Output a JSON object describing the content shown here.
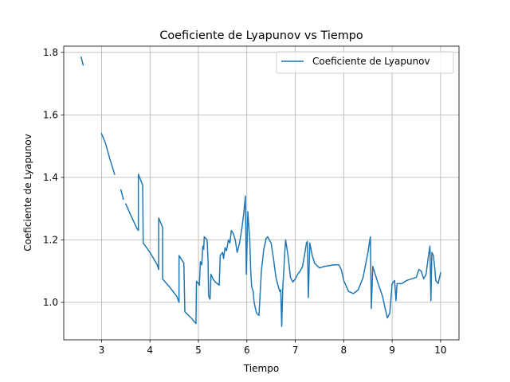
{
  "chart_data": {
    "type": "line",
    "title": "Coeficiente de Lyapunov vs Tiempo",
    "xlabel": "Tiempo",
    "ylabel": "Coeficiente de Lyapunov",
    "xlim": [
      2.22,
      10.38
    ],
    "ylim": [
      0.88,
      1.82
    ],
    "xticks": [
      3,
      4,
      5,
      6,
      7,
      8,
      9,
      10
    ],
    "yticks": [
      1.0,
      1.2,
      1.4,
      1.6,
      1.8
    ],
    "ytick_labels": [
      "1.0",
      "1.2",
      "1.4",
      "1.6",
      "1.8"
    ],
    "grid": true,
    "legend_position": "top-right",
    "series": [
      {
        "name": "Coeficiente de Lyapunov",
        "color": "#1f77b4",
        "segments": [
          [
            [
              2.58,
              1.785
            ],
            [
              2.62,
              1.76
            ]
          ],
          [
            [
              3.0,
              1.54
            ],
            [
              3.08,
              1.51
            ],
            [
              3.17,
              1.46
            ],
            [
              3.27,
              1.41
            ]
          ],
          [
            [
              3.4,
              1.36
            ],
            [
              3.45,
              1.33
            ]
          ],
          [
            [
              3.5,
              1.315
            ],
            [
              3.6,
              1.28
            ],
            [
              3.72,
              1.24
            ],
            [
              3.76,
              1.23
            ],
            [
              3.76,
              1.41
            ],
            [
              3.85,
              1.375
            ],
            [
              3.86,
              1.19
            ],
            [
              4.0,
              1.16
            ],
            [
              4.15,
              1.12
            ],
            [
              4.18,
              1.105
            ],
            [
              4.18,
              1.27
            ],
            [
              4.26,
              1.24
            ],
            [
              4.26,
              1.075
            ],
            [
              4.4,
              1.05
            ],
            [
              4.55,
              1.02
            ],
            [
              4.6,
              1.0
            ],
            [
              4.6,
              1.15
            ],
            [
              4.7,
              1.125
            ],
            [
              4.72,
              0.97
            ],
            [
              4.85,
              0.95
            ],
            [
              4.95,
              0.932
            ],
            [
              4.96,
              1.068
            ],
            [
              5.0,
              1.06
            ],
            [
              5.02,
              1.055
            ],
            [
              5.04,
              1.13
            ],
            [
              5.07,
              1.12
            ],
            [
              5.09,
              1.18
            ],
            [
              5.11,
              1.17
            ],
            [
              5.12,
              1.21
            ],
            [
              5.18,
              1.2
            ],
            [
              5.2,
              1.13
            ],
            [
              5.21,
              1.02
            ],
            [
              5.24,
              1.01
            ],
            [
              5.26,
              1.09
            ],
            [
              5.3,
              1.075
            ],
            [
              5.35,
              1.065
            ],
            [
              5.43,
              1.055
            ],
            [
              5.45,
              1.15
            ],
            [
              5.5,
              1.16
            ],
            [
              5.52,
              1.14
            ],
            [
              5.55,
              1.175
            ],
            [
              5.58,
              1.165
            ],
            [
              5.62,
              1.2
            ],
            [
              5.65,
              1.19
            ],
            [
              5.68,
              1.23
            ],
            [
              5.72,
              1.22
            ],
            [
              5.76,
              1.2
            ],
            [
              5.8,
              1.16
            ],
            [
              5.85,
              1.19
            ],
            [
              5.9,
              1.24
            ],
            [
              5.94,
              1.29
            ],
            [
              5.97,
              1.34
            ],
            [
              5.99,
              1.09
            ],
            [
              6.02,
              1.29
            ],
            [
              6.06,
              1.2
            ],
            [
              6.08,
              1.1
            ],
            [
              6.1,
              1.05
            ],
            [
              6.13,
              1.035
            ],
            [
              6.15,
              1.0
            ],
            [
              6.2,
              0.965
            ],
            [
              6.25,
              0.958
            ],
            [
              6.3,
              1.1
            ],
            [
              6.35,
              1.17
            ],
            [
              6.4,
              1.205
            ],
            [
              6.43,
              1.21
            ],
            [
              6.5,
              1.19
            ],
            [
              6.55,
              1.14
            ],
            [
              6.6,
              1.08
            ],
            [
              6.65,
              1.05
            ],
            [
              6.68,
              1.035
            ],
            [
              6.7,
              1.04
            ],
            [
              6.72,
              0.923
            ],
            [
              6.74,
              1.04
            ],
            [
              6.78,
              1.15
            ],
            [
              6.8,
              1.2
            ],
            [
              6.85,
              1.15
            ],
            [
              6.9,
              1.08
            ],
            [
              6.95,
              1.065
            ],
            [
              7.0,
              1.075
            ],
            [
              7.05,
              1.09
            ],
            [
              7.1,
              1.1
            ],
            [
              7.15,
              1.115
            ],
            [
              7.2,
              1.16
            ],
            [
              7.23,
              1.19
            ],
            [
              7.25,
              1.195
            ],
            [
              7.27,
              1.015
            ],
            [
              7.3,
              1.19
            ],
            [
              7.35,
              1.15
            ],
            [
              7.4,
              1.125
            ],
            [
              7.5,
              1.11
            ],
            [
              7.6,
              1.115
            ],
            [
              7.8,
              1.12
            ],
            [
              7.9,
              1.12
            ],
            [
              7.95,
              1.105
            ],
            [
              8.0,
              1.07
            ],
            [
              8.1,
              1.035
            ],
            [
              8.2,
              1.028
            ],
            [
              8.3,
              1.04
            ],
            [
              8.4,
              1.08
            ],
            [
              8.5,
              1.16
            ],
            [
              8.55,
              1.21
            ],
            [
              8.57,
              0.98
            ],
            [
              8.6,
              1.115
            ],
            [
              8.65,
              1.09
            ],
            [
              8.7,
              1.065
            ],
            [
              8.8,
              1.02
            ],
            [
              8.9,
              0.95
            ],
            [
              8.95,
              0.965
            ],
            [
              9.0,
              1.06
            ],
            [
              9.05,
              1.07
            ],
            [
              9.08,
              1.005
            ],
            [
              9.1,
              1.06
            ],
            [
              9.2,
              1.06
            ],
            [
              9.3,
              1.07
            ],
            [
              9.4,
              1.075
            ],
            [
              9.5,
              1.08
            ],
            [
              9.55,
              1.105
            ],
            [
              9.6,
              1.1
            ],
            [
              9.65,
              1.075
            ],
            [
              9.7,
              1.09
            ],
            [
              9.75,
              1.15
            ],
            [
              9.78,
              1.18
            ],
            [
              9.8,
              1.005
            ],
            [
              9.82,
              1.16
            ],
            [
              9.85,
              1.15
            ],
            [
              9.88,
              1.11
            ],
            [
              9.9,
              1.07
            ],
            [
              9.95,
              1.06
            ],
            [
              10.0,
              1.095
            ]
          ]
        ]
      }
    ]
  }
}
